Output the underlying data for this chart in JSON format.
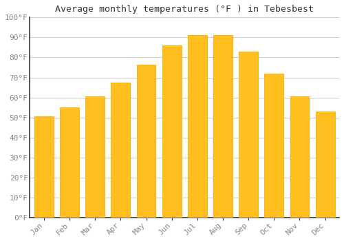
{
  "months": [
    "Jan",
    "Feb",
    "Mar",
    "Apr",
    "May",
    "Jun",
    "Jul",
    "Aug",
    "Sep",
    "Oct",
    "Nov",
    "Dec"
  ],
  "values": [
    50.5,
    55.0,
    60.5,
    67.5,
    76.5,
    86.0,
    91.0,
    91.0,
    83.0,
    72.0,
    60.5,
    53.0
  ],
  "bar_color_main": "#FFC020",
  "bar_color_edge": "#FFA500",
  "title": "Average monthly temperatures (°F ) in Tebesbest",
  "ylim": [
    0,
    100
  ],
  "yticks": [
    0,
    10,
    20,
    30,
    40,
    50,
    60,
    70,
    80,
    90,
    100
  ],
  "ytick_labels": [
    "0°F",
    "10°F",
    "20°F",
    "30°F",
    "40°F",
    "50°F",
    "60°F",
    "70°F",
    "80°F",
    "90°F",
    "100°F"
  ],
  "background_color": "#FFFFFF",
  "grid_color": "#CCCCCC",
  "title_fontsize": 9.5,
  "tick_fontsize": 8,
  "font_family": "monospace",
  "label_color": "#888888",
  "spine_color": "#333333"
}
